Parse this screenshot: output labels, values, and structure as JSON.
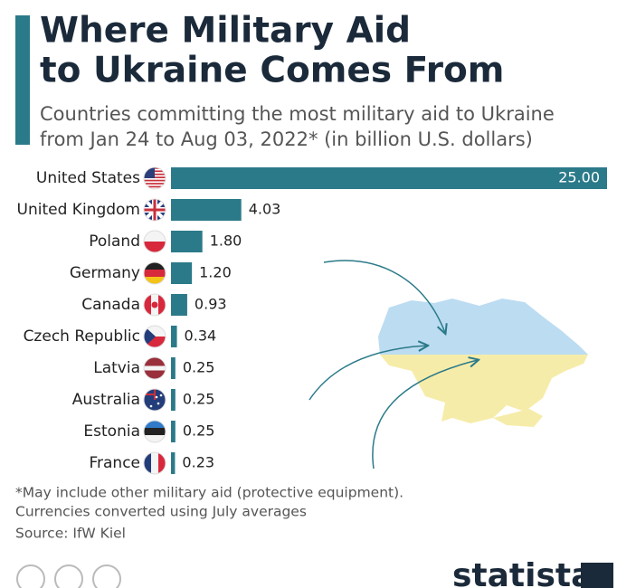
{
  "chart_data": {
    "type": "bar",
    "title": [
      "Where Military Aid",
      "to Ukraine Comes From"
    ],
    "subtitle": [
      "Countries committing the most military aid to Ukraine",
      "from Jan 24 to Aug 03, 2022* (in billion U.S. dollars)"
    ],
    "categories": [
      "United States",
      "United Kingdom",
      "Poland",
      "Germany",
      "Canada",
      "Czech Republic",
      "Latvia",
      "Australia",
      "Estonia",
      "France"
    ],
    "values": [
      25,
      4.03,
      1.8,
      1.2,
      0.93,
      0.34,
      0.25,
      0.25,
      0.25,
      0.23
    ],
    "value_labels": [
      "25.00",
      "4.03",
      "1.80",
      "1.20",
      "0.93",
      "0.34",
      "0.25",
      "0.25",
      "0.25",
      "0.23"
    ],
    "color": "#2b7a89",
    "xlim": [
      0,
      25
    ],
    "notes": [
      "*May include other military aid (protective equipment).",
      "Currencies converted using July averages"
    ],
    "source": "Source: IfW Kiel",
    "brand": "statista"
  }
}
